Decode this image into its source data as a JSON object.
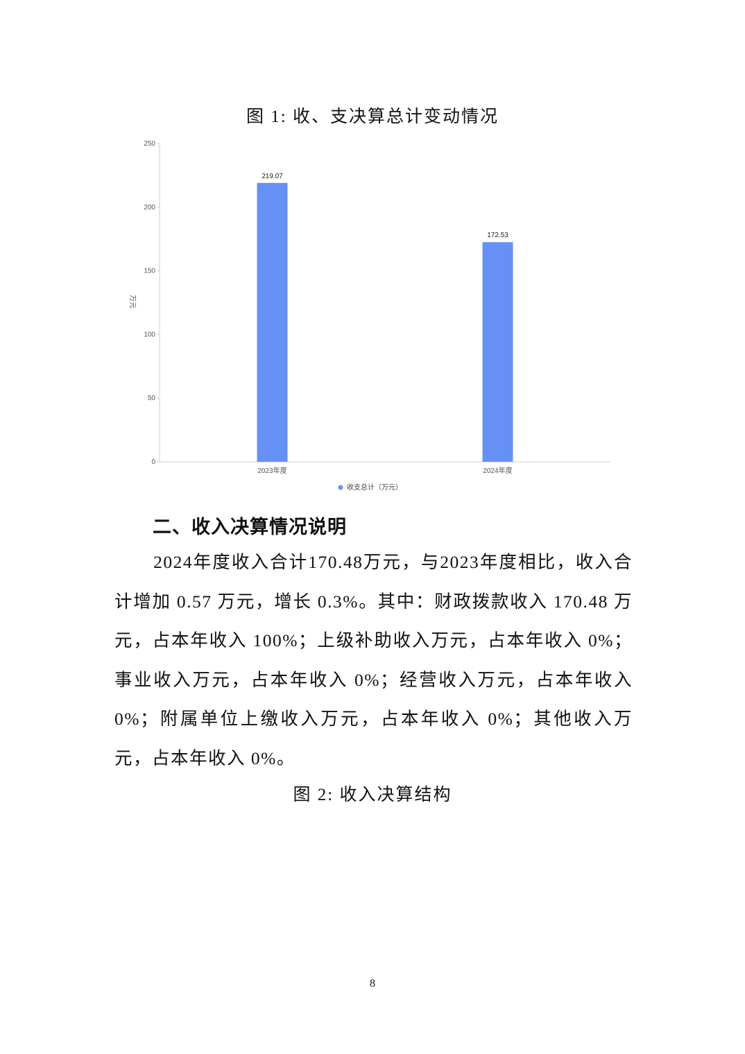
{
  "figure1_caption": "图 1: 收、支决算总计变动情况",
  "chart_data": {
    "type": "bar",
    "title": "",
    "categories": [
      "2023年度",
      "2024年度"
    ],
    "series": [
      {
        "name": "收支总计（万元）",
        "values": [
          219.07,
          172.53
        ]
      }
    ],
    "data_labels": [
      "219.07",
      "172.53"
    ],
    "ylabel": "万元",
    "ylim": [
      0,
      250
    ],
    "yticks": [
      0,
      50,
      100,
      150,
      200,
      250
    ],
    "grid": false,
    "legend": "bottom",
    "bar_color": "#6690F5"
  },
  "section_heading": "二、收入决算情况说明",
  "paragraph": "2024年度收入合计170.48万元，与2023年度相比，收入合计增加 0.57 万元，增长 0.3%。其中：财政拨款收入 170.48 万元，占本年收入 100%；上级补助收入万元，占本年收入 0%；事业收入万元，占本年收入 0%；经营收入万元，占本年收入 0%；附属单位上缴收入万元，占本年收入 0%；其他收入万元，占本年收入 0%。",
  "figure2_caption": "图 2: 收入决算结构",
  "page_number": "8"
}
